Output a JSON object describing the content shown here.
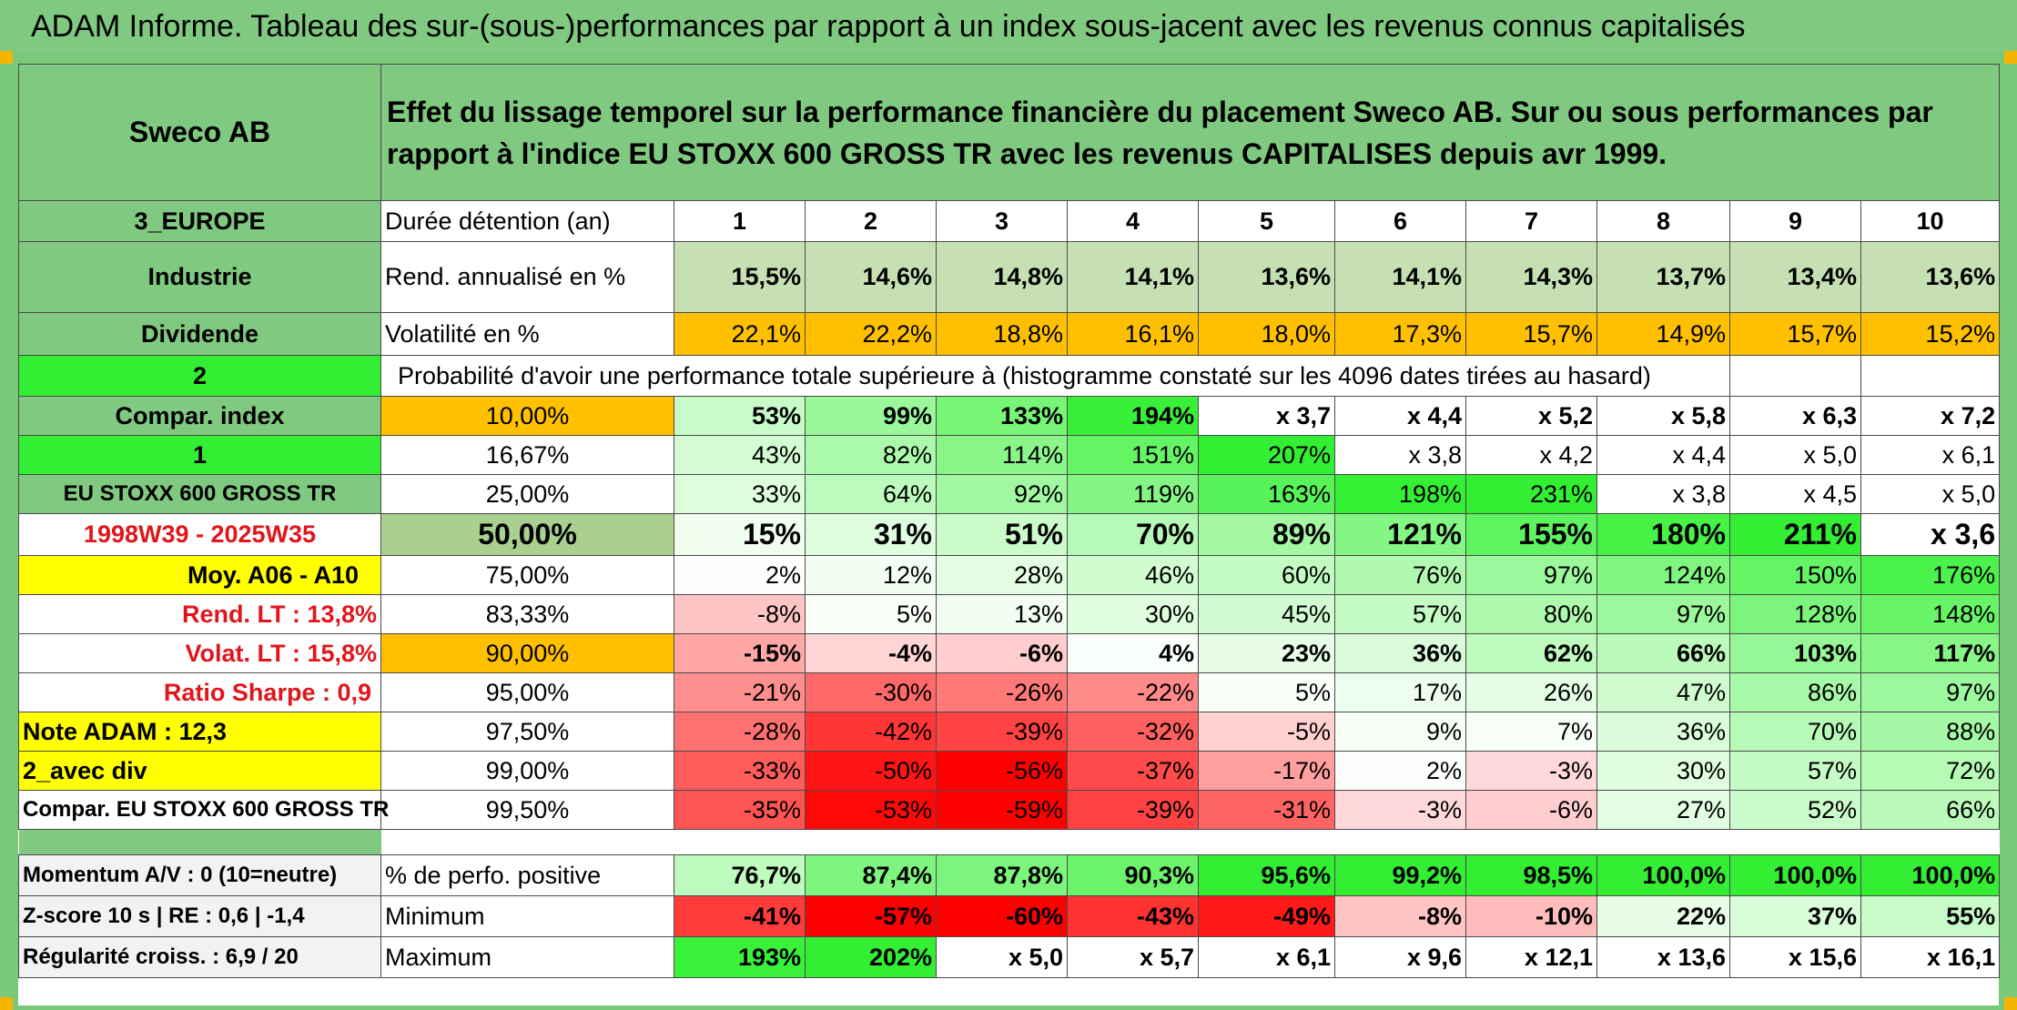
{
  "title": "ADAM Informe. Tableau des sur-(sous-)performances par rapport à un index sous-jacent avec les revenus connus capitalisés",
  "header": {
    "company": "Sweco AB",
    "description": "Effet du lissage temporel sur la performance financière du placement Sweco AB. Sur ou sous performances par rapport à l'indice EU STOXX 600 GROSS TR avec les revenus CAPITALISES depuis avr 1999."
  },
  "sidebar": {
    "region": "3_EUROPE",
    "sector": "Industrie",
    "type": "Dividende",
    "n2": "2",
    "compar_index": "Compar. index",
    "n1": "1",
    "index_name": "EU STOXX 600 GROSS TR",
    "period": "1998W39 - 2025W35",
    "moy": "Moy. A06 - A10",
    "rend_lt": "Rend. LT :    13,8%",
    "volat_lt": "Volat. LT :    15,8%",
    "sharpe": "Ratio Sharpe :    0,9",
    "note": "Note ADAM : 12,3",
    "avec_div": "2_avec div",
    "compar_full": "Compar. EU STOXX 600 GROSS TR",
    "momentum": "Momentum A/V : 0 (10=neutre)",
    "zscore": "Z-score 10 s | RE : 0,6 | -1,4",
    "regularite": "Régularité croiss. : 6,9 / 20"
  },
  "stats": {
    "duree_label": "Durée détention (an)",
    "years": [
      "1",
      "2",
      "3",
      "4",
      "5",
      "6",
      "7",
      "8",
      "9",
      "10"
    ],
    "rend_label": "Rend. annualisé en %",
    "rend": [
      "15,5%",
      "14,6%",
      "14,8%",
      "14,1%",
      "13,6%",
      "14,1%",
      "14,3%",
      "13,7%",
      "13,4%",
      "13,6%"
    ],
    "vol_label": "Volatilité en %",
    "vol": [
      "22,1%",
      "22,2%",
      "18,8%",
      "16,1%",
      "18,0%",
      "17,3%",
      "15,7%",
      "14,9%",
      "15,7%",
      "15,2%"
    ],
    "prob_label": "Probabilité d'avoir une performance totale supérieure à (histogramme constaté sur les 4096 dates tirées au hasard)"
  },
  "prob_rows": [
    {
      "pct": "10,00%",
      "values": [
        "53%",
        "99%",
        "133%",
        "194%",
        "x 3,7",
        "x 4,4",
        "x 5,2",
        "x 5,8",
        "x 6,3",
        "x 7,2"
      ]
    },
    {
      "pct": "16,67%",
      "values": [
        "43%",
        "82%",
        "114%",
        "151%",
        "207%",
        "x 3,8",
        "x 4,2",
        "x 4,4",
        "x 5,0",
        "x 6,1"
      ]
    },
    {
      "pct": "25,00%",
      "values": [
        "33%",
        "64%",
        "92%",
        "119%",
        "163%",
        "198%",
        "231%",
        "x 3,8",
        "x 4,5",
        "x 5,0"
      ]
    },
    {
      "pct": "50,00%",
      "values": [
        "15%",
        "31%",
        "51%",
        "70%",
        "89%",
        "121%",
        "155%",
        "180%",
        "211%",
        "x 3,6"
      ]
    },
    {
      "pct": "75,00%",
      "values": [
        "2%",
        "12%",
        "28%",
        "46%",
        "60%",
        "76%",
        "97%",
        "124%",
        "150%",
        "176%"
      ]
    },
    {
      "pct": "83,33%",
      "values": [
        "-8%",
        "5%",
        "13%",
        "30%",
        "45%",
        "57%",
        "80%",
        "97%",
        "128%",
        "148%"
      ]
    },
    {
      "pct": "90,00%",
      "values": [
        "-15%",
        "-4%",
        "-6%",
        "4%",
        "23%",
        "36%",
        "62%",
        "66%",
        "103%",
        "117%"
      ]
    },
    {
      "pct": "95,00%",
      "values": [
        "-21%",
        "-30%",
        "-26%",
        "-22%",
        "5%",
        "17%",
        "26%",
        "47%",
        "86%",
        "97%"
      ]
    },
    {
      "pct": "97,50%",
      "values": [
        "-28%",
        "-42%",
        "-39%",
        "-32%",
        "-5%",
        "9%",
        "7%",
        "36%",
        "70%",
        "88%"
      ]
    },
    {
      "pct": "99,00%",
      "values": [
        "-33%",
        "-50%",
        "-56%",
        "-37%",
        "-17%",
        "2%",
        "-3%",
        "30%",
        "57%",
        "72%"
      ]
    },
    {
      "pct": "99,50%",
      "values": [
        "-35%",
        "-53%",
        "-59%",
        "-39%",
        "-31%",
        "-3%",
        "-6%",
        "27%",
        "52%",
        "66%"
      ]
    }
  ],
  "bottom": {
    "pos_label": "% de perfo. positive",
    "pos": [
      "76,7%",
      "87,4%",
      "87,8%",
      "90,3%",
      "95,6%",
      "99,2%",
      "98,5%",
      "100,0%",
      "100,0%",
      "100,0%"
    ],
    "min_label": "Minimum",
    "min": [
      "-41%",
      "-57%",
      "-60%",
      "-43%",
      "-49%",
      "-8%",
      "-10%",
      "22%",
      "37%",
      "55%"
    ],
    "max_label": "Maximum",
    "max": [
      "193%",
      "202%",
      "x 5,0",
      "x 5,7",
      "x 6,1",
      "x 9,6",
      "x 12,1",
      "x 13,6",
      "x 15,6",
      "x 16,1"
    ]
  },
  "colors": {
    "green_header": "#80c980",
    "yellow": "#ffff00",
    "orange": "#ffc000",
    "bright_green": "#33ee33",
    "red_text": "#e0161b"
  }
}
